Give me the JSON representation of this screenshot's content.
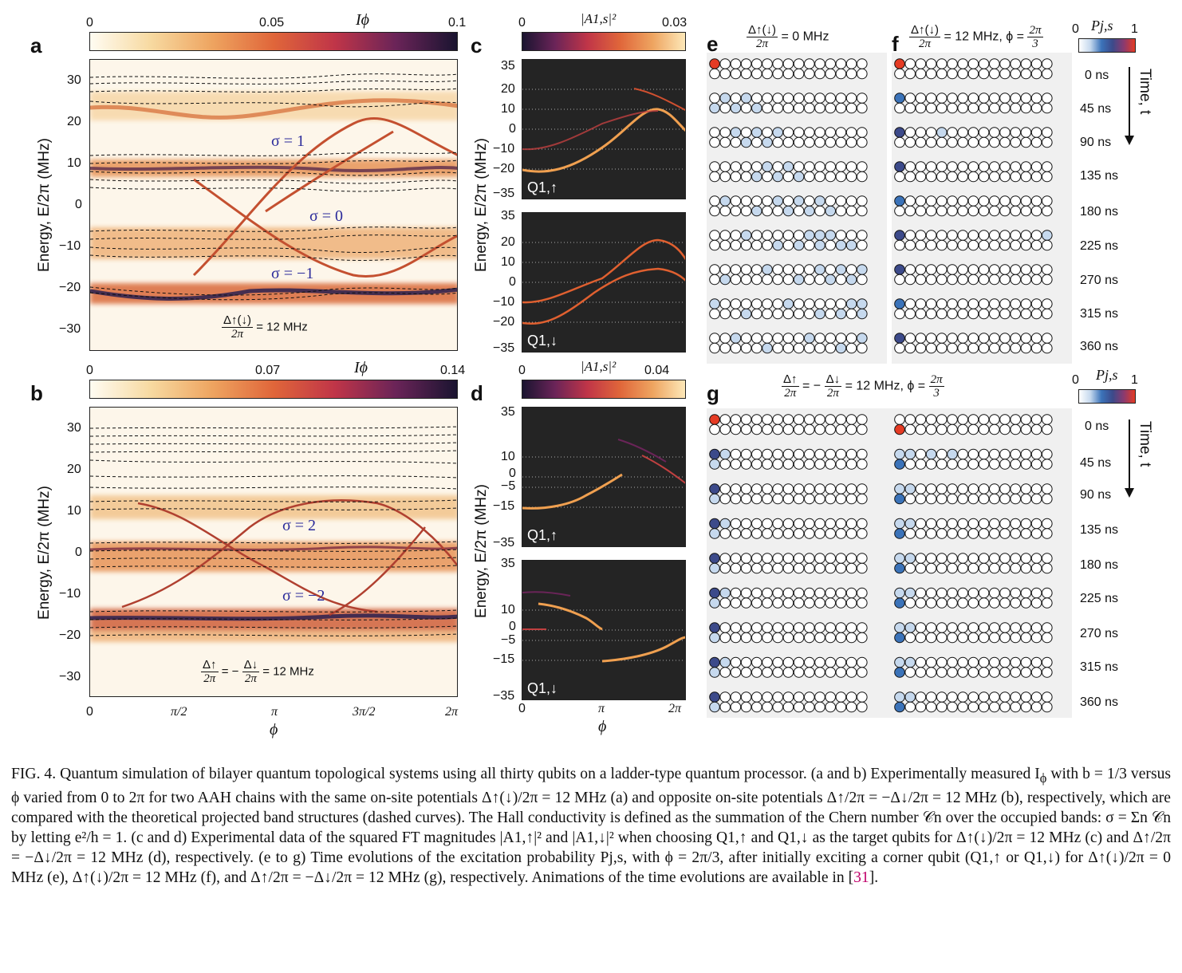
{
  "panels": {
    "a": {
      "label": "a",
      "colorbar": {
        "ticks": [
          "0",
          "0.05",
          "0.1"
        ],
        "title": "Iϕ"
      },
      "yticks": [
        "30",
        "20",
        "10",
        "0",
        "−10",
        "−20",
        "−30"
      ],
      "ylabel": "Energy, E/2π (MHz)",
      "annotations": [
        "σ = 1",
        "σ = 0",
        "σ = −1"
      ],
      "param_num": "Δ↑(↓)",
      "param_den": "2π",
      "param_val": "= 12 MHz"
    },
    "b": {
      "label": "b",
      "colorbar": {
        "ticks": [
          "0",
          "0.07",
          "0.14"
        ],
        "title": "Iϕ"
      },
      "yticks": [
        "30",
        "20",
        "10",
        "0",
        "−10",
        "−20",
        "−30"
      ],
      "ylabel": "Energy, E/2π (MHz)",
      "annotations": [
        "σ = 2",
        "σ = −2"
      ],
      "xticks": [
        "0",
        "π/2",
        "π",
        "3π/2",
        "2π"
      ],
      "xlabel": "ϕ",
      "param_num1": "Δ↑",
      "param_den1": "2π",
      "param_mid": "= −",
      "param_num2": "Δ↓",
      "param_den2": "2π",
      "param_val": "= 12 MHz"
    },
    "c": {
      "label": "c",
      "colorbar": {
        "ticks": [
          "0",
          "0.03"
        ],
        "title": "|A1,s|²"
      },
      "top_yticks": [
        "35",
        "20",
        "10",
        "0",
        "−10",
        "−20",
        "−35"
      ],
      "bottom_yticks": [
        "35",
        "20",
        "10",
        "0",
        "−10",
        "−20",
        "−35"
      ],
      "ylabel": "Energy, E/2π (MHz)",
      "q_top": "Q1,↑",
      "q_bottom": "Q1,↓"
    },
    "d": {
      "label": "d",
      "colorbar": {
        "ticks": [
          "0",
          "0.04"
        ],
        "title": "|A1,s|²"
      },
      "top_yticks": [
        "35",
        "10",
        "0",
        "−5",
        "−15",
        "−35"
      ],
      "bottom_yticks": [
        "35",
        "10",
        "0",
        "−5",
        "−15",
        "−35"
      ],
      "ylabel": "Energy, E/2π (MHz)",
      "xticks": [
        "0",
        "π",
        "2π"
      ],
      "xlabel": "ϕ",
      "q_top": "Q1,↑",
      "q_bottom": "Q1,↓"
    },
    "e": {
      "label": "e",
      "title_num": "Δ↑(↓)",
      "title_den": "2π",
      "title_val": "= 0 MHz"
    },
    "f": {
      "label": "f",
      "title_num": "Δ↑(↓)",
      "title_den": "2π",
      "title_val": "= 12 MHz, ϕ =",
      "phi_num": "2π",
      "phi_den": "3",
      "colorbar": {
        "title": "Pj,s",
        "min": "0",
        "max": "1"
      }
    },
    "g": {
      "label": "g",
      "title_num1": "Δ↑",
      "title_den1": "2π",
      "title_mid": "= −",
      "title_num2": "Δ↓",
      "title_den2": "2π",
      "title_val": "= 12 MHz,  ϕ =",
      "phi_num": "2π",
      "phi_den": "3",
      "colorbar": {
        "title": "Pj,s",
        "min": "0",
        "max": "1"
      }
    },
    "time_axis": "Time, t",
    "times": [
      "0 ns",
      "45 ns",
      "90 ns",
      "135 ns",
      "180 ns",
      "225 ns",
      "270 ns",
      "315 ns",
      "360 ns"
    ]
  },
  "colors": {
    "red": "#e53b24",
    "dark": "#3c4a8a",
    "mid": "#3b73b9",
    "light": "#c6d9ee",
    "plot_bg": "#242424"
  },
  "caption": {
    "p1": "FIG. 4. Quantum simulation of bilayer quantum topological systems using all thirty qubits on a ladder-type quantum processor. (a and b) Experimentally measured I",
    "p2": "ϕ",
    "p3": " with b = 1/3 versus ϕ varied from 0 to 2π for two AAH chains with the same on-site potentials Δ↑(↓)/2π = 12 MHz (a) and opposite on-site potentials Δ↑/2π = −Δ↓/2π = 12 MHz (b), respectively, which are compared with the theoretical projected band structures (dashed curves). The Hall conductivity is defined as the summation of the Chern number 𝒞n over the occupied bands: σ = Σn 𝒞n by letting e²/h = 1. (c and d) Experimental data of the squared FT magnitudes |A1,↑|² and |A1,↓|² when choosing Q1,↑ and Q1,↓ as the target qubits for Δ↑(↓)/2π = 12 MHz (c) and Δ↑/2π = −Δ↓/2π = 12 MHz (d), respectively. (e to g) Time evolutions of the excitation probability Pj,s, with ϕ = 2π/3, after initially exciting a corner qubit (Q1,↑ or Q1,↓) for Δ↑(↓)/2π = 0 MHz (e), Δ↑(↓)/2π = 12 MHz (f), and Δ↑/2π = −Δ↓/2π = 12 MHz (g), respectively. Animations of the time evolutions are available in [",
    "ref": "31",
    "p4": "]."
  }
}
